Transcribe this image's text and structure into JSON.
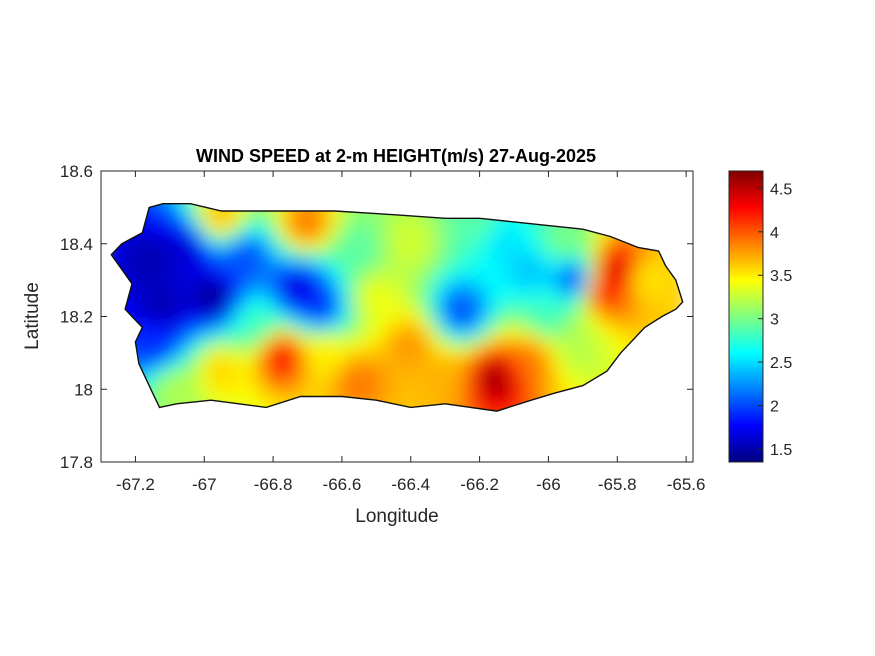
{
  "chart_data": {
    "type": "heatmap",
    "title": "WIND SPEED at 2-m HEIGHT(m/s) 27-Aug-2025",
    "xlabel": "Longitude",
    "ylabel": "Latitude",
    "xlim": [
      -67.3,
      -65.58
    ],
    "ylim": [
      17.8,
      18.6
    ],
    "xticks": [
      -67.2,
      -67,
      -66.8,
      -66.6,
      -66.4,
      -66.2,
      -66,
      -65.8,
      -65.6
    ],
    "xtick_labels": [
      "-67.2",
      "-67",
      "-66.8",
      "-66.6",
      "-66.4",
      "-66.2",
      "-66",
      "-65.8",
      "-65.6"
    ],
    "yticks": [
      18.6,
      18.4,
      18.2,
      18,
      17.8
    ],
    "ytick_labels": [
      "18.6",
      "18.4",
      "18.2",
      "18",
      "17.8"
    ],
    "colorbar": {
      "colormap": "jet",
      "range": [
        1.35,
        4.7
      ],
      "ticks": [
        1.5,
        2,
        2.5,
        3,
        3.5,
        4,
        4.5
      ],
      "tick_labels": [
        "1.5",
        "2",
        "2.5",
        "3",
        "3.5",
        "4",
        "4.5"
      ]
    },
    "outline": [
      [
        -67.27,
        18.37
      ],
      [
        -67.24,
        18.4
      ],
      [
        -67.18,
        18.43
      ],
      [
        -67.16,
        18.5
      ],
      [
        -67.12,
        18.51
      ],
      [
        -67.04,
        18.51
      ],
      [
        -66.95,
        18.49
      ],
      [
        -66.8,
        18.49
      ],
      [
        -66.62,
        18.49
      ],
      [
        -66.45,
        18.48
      ],
      [
        -66.3,
        18.47
      ],
      [
        -66.2,
        18.47
      ],
      [
        -66.1,
        18.46
      ],
      [
        -66.0,
        18.45
      ],
      [
        -65.9,
        18.44
      ],
      [
        -65.82,
        18.42
      ],
      [
        -65.74,
        18.39
      ],
      [
        -65.68,
        18.38
      ],
      [
        -65.66,
        18.34
      ],
      [
        -65.63,
        18.3
      ],
      [
        -65.61,
        18.24
      ],
      [
        -65.63,
        18.22
      ],
      [
        -65.67,
        18.2
      ],
      [
        -65.72,
        18.17
      ],
      [
        -65.79,
        18.1
      ],
      [
        -65.83,
        18.05
      ],
      [
        -65.9,
        18.01
      ],
      [
        -65.98,
        17.99
      ],
      [
        -66.05,
        17.97
      ],
      [
        -66.15,
        17.94
      ],
      [
        -66.3,
        17.96
      ],
      [
        -66.4,
        17.95
      ],
      [
        -66.5,
        17.97
      ],
      [
        -66.6,
        17.98
      ],
      [
        -66.72,
        17.98
      ],
      [
        -66.82,
        17.95
      ],
      [
        -66.9,
        17.96
      ],
      [
        -66.98,
        17.97
      ],
      [
        -67.08,
        17.96
      ],
      [
        -67.13,
        17.95
      ],
      [
        -67.15,
        17.99
      ],
      [
        -67.19,
        18.07
      ],
      [
        -67.2,
        18.13
      ],
      [
        -67.18,
        18.17
      ],
      [
        -67.23,
        18.22
      ],
      [
        -67.21,
        18.29
      ],
      [
        -67.27,
        18.37
      ]
    ],
    "stations": [
      {
        "lon": -67.15,
        "lat": 18.35,
        "value": 1.5
      },
      {
        "lon": -67.05,
        "lat": 18.38,
        "value": 1.6
      },
      {
        "lon": -66.97,
        "lat": 18.25,
        "value": 1.4
      },
      {
        "lon": -67.12,
        "lat": 18.22,
        "value": 1.5
      },
      {
        "lon": -67.14,
        "lat": 18.12,
        "value": 1.9
      },
      {
        "lon": -66.88,
        "lat": 18.36,
        "value": 2.0
      },
      {
        "lon": -66.72,
        "lat": 18.27,
        "value": 1.6
      },
      {
        "lon": -66.66,
        "lat": 18.22,
        "value": 1.9
      },
      {
        "lon": -66.55,
        "lat": 18.38,
        "value": 2.9
      },
      {
        "lon": -66.4,
        "lat": 18.4,
        "value": 3.3
      },
      {
        "lon": -66.25,
        "lat": 18.21,
        "value": 2.0
      },
      {
        "lon": -66.05,
        "lat": 18.32,
        "value": 2.4
      },
      {
        "lon": -65.92,
        "lat": 18.3,
        "value": 1.9
      },
      {
        "lon": -66.13,
        "lat": 18.4,
        "value": 2.5
      },
      {
        "lon": -65.8,
        "lat": 18.32,
        "value": 4.5
      },
      {
        "lon": -65.84,
        "lat": 18.27,
        "value": 4.2
      },
      {
        "lon": -65.72,
        "lat": 18.3,
        "value": 3.5
      },
      {
        "lon": -66.77,
        "lat": 18.09,
        "value": 4.3
      },
      {
        "lon": -66.95,
        "lat": 18.05,
        "value": 3.6
      },
      {
        "lon": -66.55,
        "lat": 18.02,
        "value": 3.9
      },
      {
        "lon": -66.4,
        "lat": 18.12,
        "value": 3.8
      },
      {
        "lon": -66.15,
        "lat": 18.03,
        "value": 4.6
      },
      {
        "lon": -66.05,
        "lat": 18.08,
        "value": 3.9
      },
      {
        "lon": -65.92,
        "lat": 18.12,
        "value": 3.2
      },
      {
        "lon": -66.3,
        "lat": 18.03,
        "value": 3.7
      },
      {
        "lon": -66.7,
        "lat": 18.45,
        "value": 3.9
      },
      {
        "lon": -66.95,
        "lat": 18.47,
        "value": 3.7
      },
      {
        "lon": -66.2,
        "lat": 18.45,
        "value": 2.9
      },
      {
        "lon": -66.85,
        "lat": 18.18,
        "value": 2.8
      },
      {
        "lon": -66.5,
        "lat": 18.25,
        "value": 3.4
      },
      {
        "lon": -66.0,
        "lat": 18.2,
        "value": 2.8
      },
      {
        "lon": -65.95,
        "lat": 18.4,
        "value": 3.0
      },
      {
        "lon": -67.08,
        "lat": 18.0,
        "value": 3.2
      },
      {
        "lon": -66.65,
        "lat": 18.1,
        "value": 3.5
      }
    ]
  }
}
